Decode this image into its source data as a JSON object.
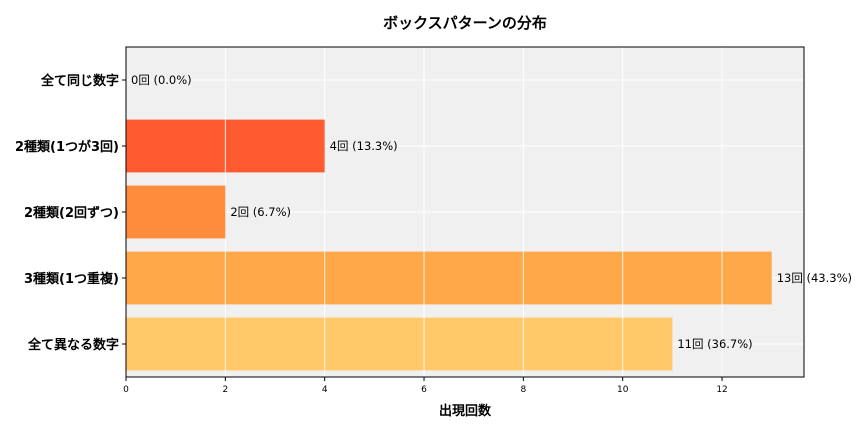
{
  "chart_data": {
    "type": "bar",
    "orientation": "horizontal",
    "title": "ボックスパターンの分布",
    "xlabel": "出現回数",
    "ylabel": "",
    "categories": [
      "全て同じ数字",
      "2種類(1つが3回)",
      "2種類(2回ずつ)",
      "3種類(1つ重複)",
      "全て異なる数字"
    ],
    "values": [
      0,
      4,
      2,
      13,
      11
    ],
    "bar_labels": [
      "0回 (0.0%)",
      "4回 (13.3%)",
      "2回 (6.7%)",
      "13回 (43.3%)",
      "11回 (36.7%)"
    ],
    "colors": [
      "#ff3b30",
      "#ff5a30",
      "#ff8c3d",
      "#ffa84a",
      "#ffc96a"
    ],
    "xlim": [
      0,
      13.65
    ],
    "xticks": [
      0,
      2,
      4,
      6,
      8,
      10,
      12
    ],
    "grid": true,
    "background": "#f0f0f0"
  }
}
